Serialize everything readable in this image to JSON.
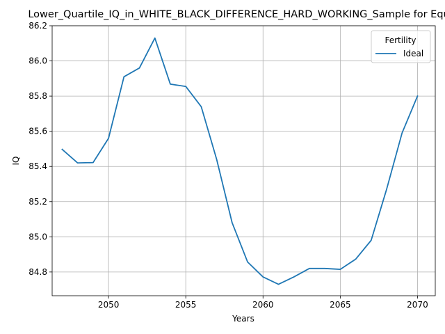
{
  "chart_data": {
    "type": "line",
    "title": "Lower_Quartile_IQ_in_WHITE_BLACK_DIFFERENCE_HARD_WORKING_Sample for Equal",
    "xlabel": "Years",
    "ylabel": "IQ",
    "xlim": [
      2046.35,
      2071.15
    ],
    "ylim": [
      84.665,
      86.2
    ],
    "xticks": [
      2050,
      2055,
      2060,
      2065,
      2070
    ],
    "yticks": [
      84.8,
      85.0,
      85.2,
      85.4,
      85.6,
      85.8,
      86.0,
      86.2
    ],
    "ytick_labels": [
      "84.8",
      "85.0",
      "85.2",
      "85.4",
      "85.6",
      "85.8",
      "86.0",
      "86.2"
    ],
    "grid": true,
    "legend": {
      "title": "Fertility",
      "placement": "top-right"
    },
    "series": [
      {
        "name": "Ideal",
        "color": "#1f77b4",
        "x": [
          2047,
          2048,
          2049,
          2050,
          2051,
          2052,
          2053,
          2054,
          2055,
          2056,
          2057,
          2058,
          2059,
          2060,
          2061,
          2062,
          2063,
          2064,
          2065,
          2066,
          2067,
          2068,
          2069,
          2070
        ],
        "y": [
          85.497,
          85.42,
          85.422,
          85.56,
          85.91,
          85.96,
          86.13,
          85.868,
          85.855,
          85.74,
          85.44,
          85.08,
          84.857,
          84.772,
          84.73,
          84.772,
          84.82,
          84.82,
          84.815,
          84.873,
          84.98,
          85.27,
          85.59,
          85.8
        ]
      }
    ]
  }
}
